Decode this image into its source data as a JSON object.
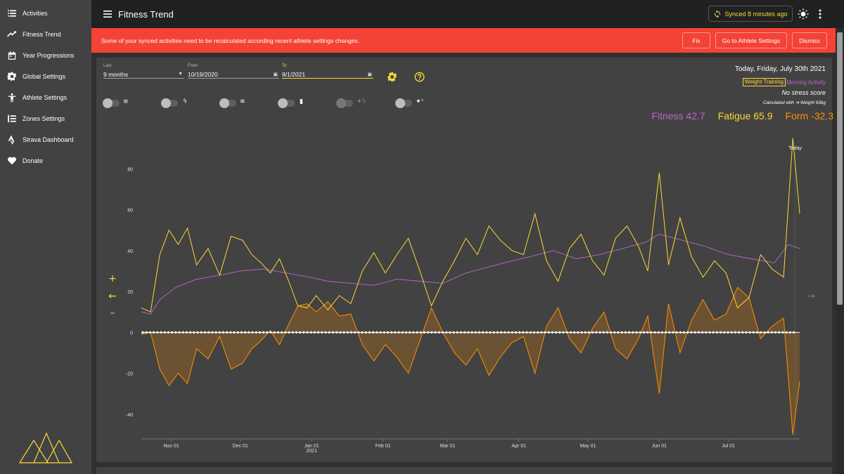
{
  "sidebar": {
    "items": [
      {
        "label": "Activities",
        "icon": "list-icon"
      },
      {
        "label": "Fitness Trend",
        "icon": "trending-up-icon"
      },
      {
        "label": "Year Progressions",
        "icon": "calendar-icon"
      },
      {
        "label": "Global Settings",
        "icon": "gear-icon"
      },
      {
        "label": "Athlete Settings",
        "icon": "person-icon"
      },
      {
        "label": "Zones Settings",
        "icon": "zones-icon"
      },
      {
        "label": "Strava Dashboard",
        "icon": "strava-icon"
      },
      {
        "label": "Donate",
        "icon": "heart-icon"
      }
    ]
  },
  "toolbar": {
    "title": "Fitness Trend",
    "sync_label": "Synced 8 minutes ago"
  },
  "banner": {
    "message": "Some of your synced activities need to be recalculated according recent athlete settings changes.",
    "fix_label": "Fix",
    "athlete_settings_label": "Go to Athlete Settings",
    "dismiss_label": "Dismiss"
  },
  "filters": {
    "last_label": "Last",
    "last_value": "9 months",
    "from_label": "From",
    "from_value": "10/19/2020",
    "to_label": "To",
    "to_value": "8/1/2021"
  },
  "info": {
    "today": "Today, Friday, July 30th 2021",
    "activity_type": "Weight Training",
    "activity_name": "Morning Activity",
    "stress": "No stress score",
    "calculated": "Calculated with ➔ Weight 63kg"
  },
  "metrics": {
    "fitness": "Fitness 42.7",
    "fatigue": "Fatigue 65.9",
    "form": "Form -32.3"
  },
  "colors": {
    "fitness": "#ba68c8",
    "fatigue": "#fdd835",
    "form": "#ff8f00",
    "banner": "#f44336",
    "accent": "#fdd835"
  },
  "chart_data": {
    "type": "line",
    "x_start": "2020-10-19",
    "x_end": "2021-08-01",
    "today_label": "Today",
    "today": "2021-07-30",
    "ylim": [
      -50,
      100
    ],
    "y_ticks": [
      80,
      60,
      40,
      20,
      0,
      -20,
      -40
    ],
    "x_ticks": [
      {
        "date": "2020-11-01",
        "label": "Nov 01",
        "sub": ""
      },
      {
        "date": "2020-12-01",
        "label": "Dec 01",
        "sub": ""
      },
      {
        "date": "2021-01-01",
        "label": "Jan 01",
        "sub": "2021"
      },
      {
        "date": "2021-02-01",
        "label": "Feb 01",
        "sub": ""
      },
      {
        "date": "2021-03-01",
        "label": "Mar 01",
        "sub": ""
      },
      {
        "date": "2021-04-01",
        "label": "Apr 01",
        "sub": ""
      },
      {
        "date": "2021-05-01",
        "label": "May 01",
        "sub": ""
      },
      {
        "date": "2021-06-01",
        "label": "Jun 01",
        "sub": ""
      },
      {
        "date": "2021-07-01",
        "label": "Jul 01",
        "sub": ""
      }
    ],
    "series": [
      {
        "key": "fitness",
        "dates": [
          "2020-10-19",
          "2020-10-23",
          "2020-10-27",
          "2020-11-03",
          "2020-11-12",
          "2020-11-22",
          "2020-12-01",
          "2020-12-11",
          "2020-12-21",
          "2020-12-31",
          "2021-01-08",
          "2021-01-18",
          "2021-01-28",
          "2021-02-07",
          "2021-02-17",
          "2021-02-27",
          "2021-03-09",
          "2021-03-19",
          "2021-03-29",
          "2021-04-06",
          "2021-04-16",
          "2021-04-26",
          "2021-05-06",
          "2021-05-16",
          "2021-05-26",
          "2021-06-01",
          "2021-06-11",
          "2021-06-21",
          "2021-07-01",
          "2021-07-11",
          "2021-07-21",
          "2021-07-27",
          "2021-08-01"
        ],
        "values": [
          10,
          9,
          16,
          22,
          26,
          28,
          30,
          31,
          29,
          27,
          25,
          24,
          23,
          26,
          25,
          24,
          29,
          32,
          35,
          37,
          40,
          36,
          38,
          41,
          44,
          48,
          45,
          42,
          38,
          36,
          34,
          43,
          41
        ]
      },
      {
        "key": "fatigue",
        "dates": [
          "2020-10-19",
          "2020-10-23",
          "2020-10-27",
          "2020-10-31",
          "2020-11-04",
          "2020-11-08",
          "2020-11-12",
          "2020-11-17",
          "2020-11-22",
          "2020-11-27",
          "2020-12-02",
          "2020-12-06",
          "2020-12-10",
          "2020-12-14",
          "2020-12-18",
          "2020-12-22",
          "2020-12-26",
          "2020-12-30",
          "2021-01-03",
          "2021-01-08",
          "2021-01-13",
          "2021-01-18",
          "2021-01-23",
          "2021-01-28",
          "2021-02-02",
          "2021-02-07",
          "2021-02-12",
          "2021-02-17",
          "2021-02-22",
          "2021-02-27",
          "2021-03-04",
          "2021-03-09",
          "2021-03-14",
          "2021-03-19",
          "2021-03-24",
          "2021-03-29",
          "2021-04-03",
          "2021-04-08",
          "2021-04-13",
          "2021-04-18",
          "2021-04-23",
          "2021-04-28",
          "2021-05-03",
          "2021-05-08",
          "2021-05-13",
          "2021-05-18",
          "2021-05-23",
          "2021-05-27",
          "2021-06-01",
          "2021-06-05",
          "2021-06-10",
          "2021-06-15",
          "2021-06-20",
          "2021-06-25",
          "2021-06-30",
          "2021-07-05",
          "2021-07-10",
          "2021-07-15",
          "2021-07-20",
          "2021-07-25",
          "2021-07-29",
          "2021-08-01"
        ],
        "values": [
          12,
          10,
          38,
          50,
          43,
          51,
          33,
          41,
          28,
          47,
          45,
          38,
          34,
          29,
          36,
          25,
          13,
          12,
          18,
          11,
          18,
          14,
          30,
          39,
          29,
          38,
          46,
          30,
          13,
          25,
          35,
          46,
          38,
          52,
          45,
          40,
          38,
          58,
          35,
          25,
          41,
          48,
          35,
          28,
          46,
          52,
          42,
          30,
          78,
          33,
          56,
          37,
          27,
          35,
          29,
          12,
          17,
          38,
          31,
          27,
          95,
          58
        ]
      },
      {
        "key": "form",
        "dates": [
          "2020-10-19",
          "2020-10-23",
          "2020-10-27",
          "2020-10-31",
          "2020-11-04",
          "2020-11-08",
          "2020-11-12",
          "2020-11-17",
          "2020-11-22",
          "2020-11-27",
          "2020-12-02",
          "2020-12-06",
          "2020-12-10",
          "2020-12-14",
          "2020-12-18",
          "2020-12-22",
          "2020-12-26",
          "2020-12-30",
          "2021-01-03",
          "2021-01-08",
          "2021-01-13",
          "2021-01-18",
          "2021-01-23",
          "2021-01-28",
          "2021-02-02",
          "2021-02-07",
          "2021-02-12",
          "2021-02-17",
          "2021-02-22",
          "2021-02-27",
          "2021-03-04",
          "2021-03-09",
          "2021-03-14",
          "2021-03-19",
          "2021-03-24",
          "2021-03-29",
          "2021-04-03",
          "2021-04-08",
          "2021-04-13",
          "2021-04-18",
          "2021-04-23",
          "2021-04-28",
          "2021-05-03",
          "2021-05-08",
          "2021-05-13",
          "2021-05-18",
          "2021-05-23",
          "2021-05-27",
          "2021-06-01",
          "2021-06-05",
          "2021-06-10",
          "2021-06-15",
          "2021-06-20",
          "2021-06-25",
          "2021-06-30",
          "2021-07-05",
          "2021-07-10",
          "2021-07-15",
          "2021-07-20",
          "2021-07-25",
          "2021-07-29",
          "2021-08-01"
        ],
        "values": [
          -1,
          0,
          -18,
          -26,
          -20,
          -25,
          -8,
          -13,
          -2,
          -18,
          -15,
          -8,
          -4,
          1,
          -6,
          4,
          13,
          14,
          10,
          15,
          8,
          9,
          -6,
          -14,
          -6,
          -12,
          -20,
          -4,
          12,
          0,
          -10,
          -16,
          -8,
          -21,
          -12,
          -5,
          -2,
          -20,
          3,
          12,
          -3,
          -10,
          2,
          10,
          -8,
          -13,
          -3,
          8,
          -30,
          14,
          -10,
          6,
          16,
          6,
          9,
          22,
          17,
          -3,
          3,
          7,
          -50,
          -24
        ]
      }
    ]
  }
}
